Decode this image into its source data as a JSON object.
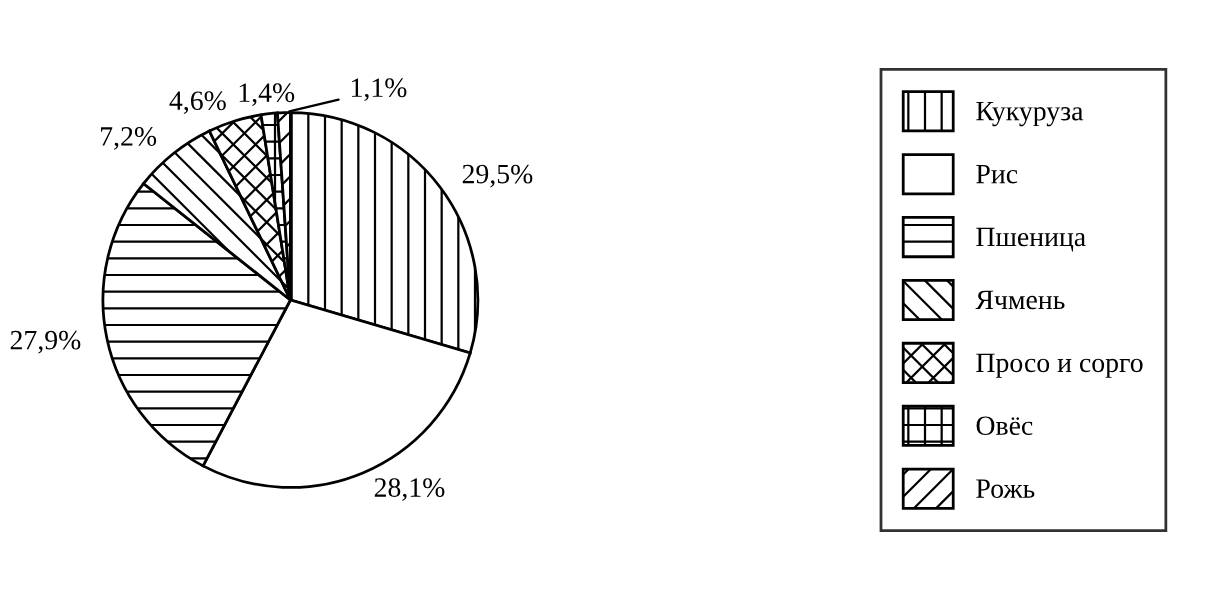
{
  "chart_data": {
    "type": "pie",
    "categories": [
      "Кукуруза",
      "Рис",
      "Пшеница",
      "Ячмень",
      "Просо и сорго",
      "Овёс",
      "Рожь"
    ],
    "values": [
      29.5,
      28.1,
      27.9,
      7.2,
      4.6,
      1.4,
      1.1
    ],
    "value_labels": [
      "29,5%",
      "28,1%",
      "27,9%",
      "7,2%",
      "4,6%",
      "1,4%",
      "1,1%"
    ],
    "legend": "right"
  }
}
